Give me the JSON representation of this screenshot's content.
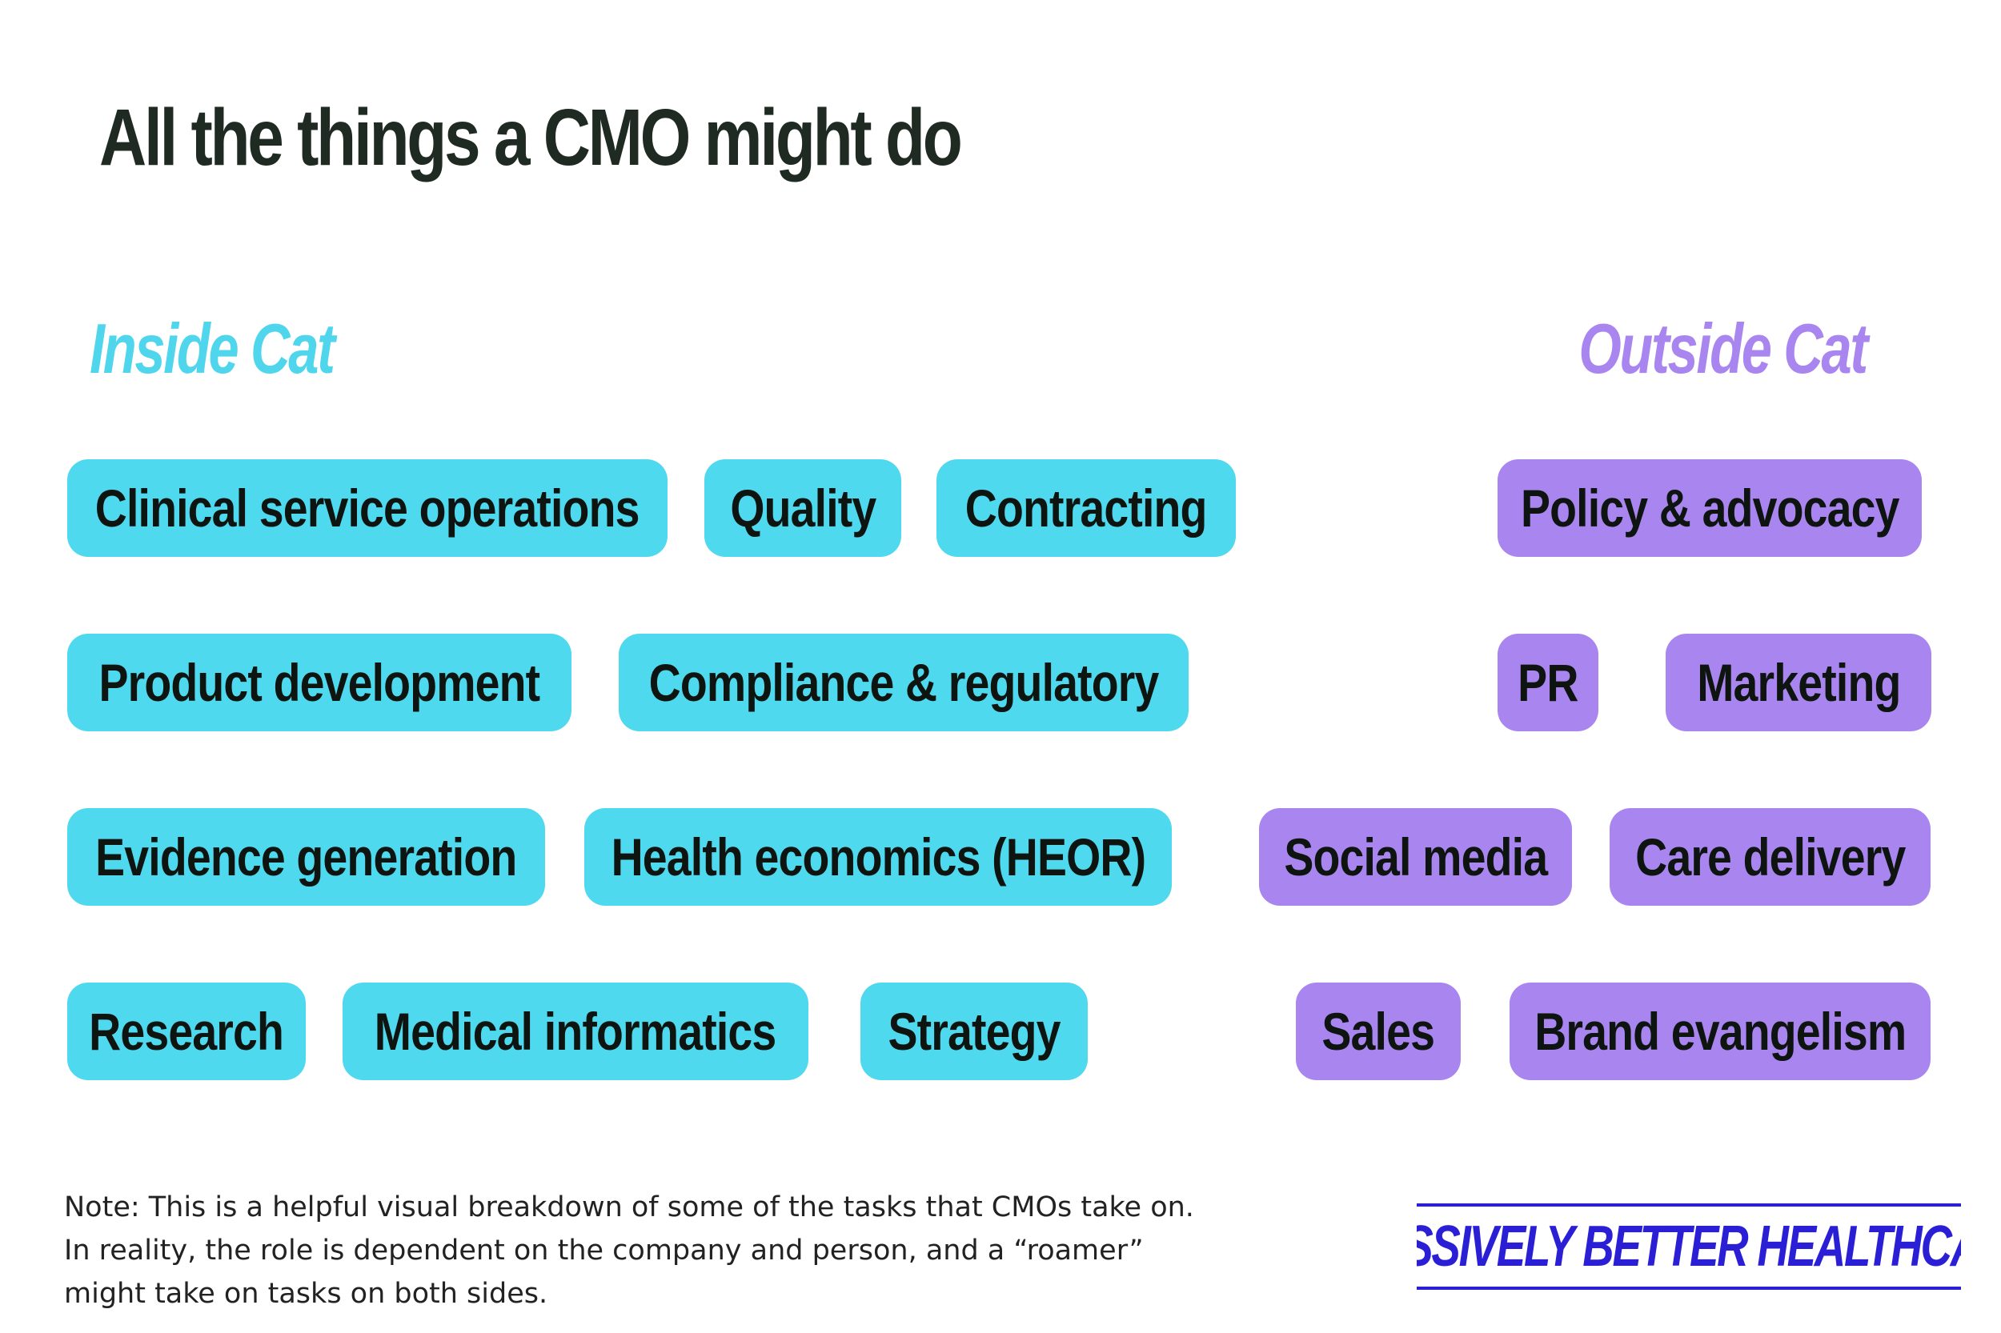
{
  "title": "All the things a CMO might do",
  "inside_label": "Inside Cat",
  "outside_label": "Outside Cat",
  "colors": {
    "inside": "#4fd9ee",
    "outside": "#a985ef",
    "brand": "#2b1fd6",
    "title": "#1f2a22"
  },
  "inside_tasks": [
    "Clinical service operations",
    "Quality",
    "Contracting",
    "Product development",
    "Compliance & regulatory",
    "Evidence generation",
    "Health economics (HEOR)",
    "Research",
    "Medical informatics",
    "Strategy"
  ],
  "outside_tasks": [
    "Policy & advocacy",
    "PR",
    "Marketing",
    "Social media",
    "Care delivery",
    "Sales",
    "Brand evangelism"
  ],
  "note_lines": [
    "Note: This is a helpful visual breakdown of some of the tasks that CMOs take on.",
    "In reality, the role is dependent on the company and person, and a “roamer”",
    "might take on tasks on both sides."
  ],
  "brand": "MASSIVELY BETTER HEALTHCARE"
}
